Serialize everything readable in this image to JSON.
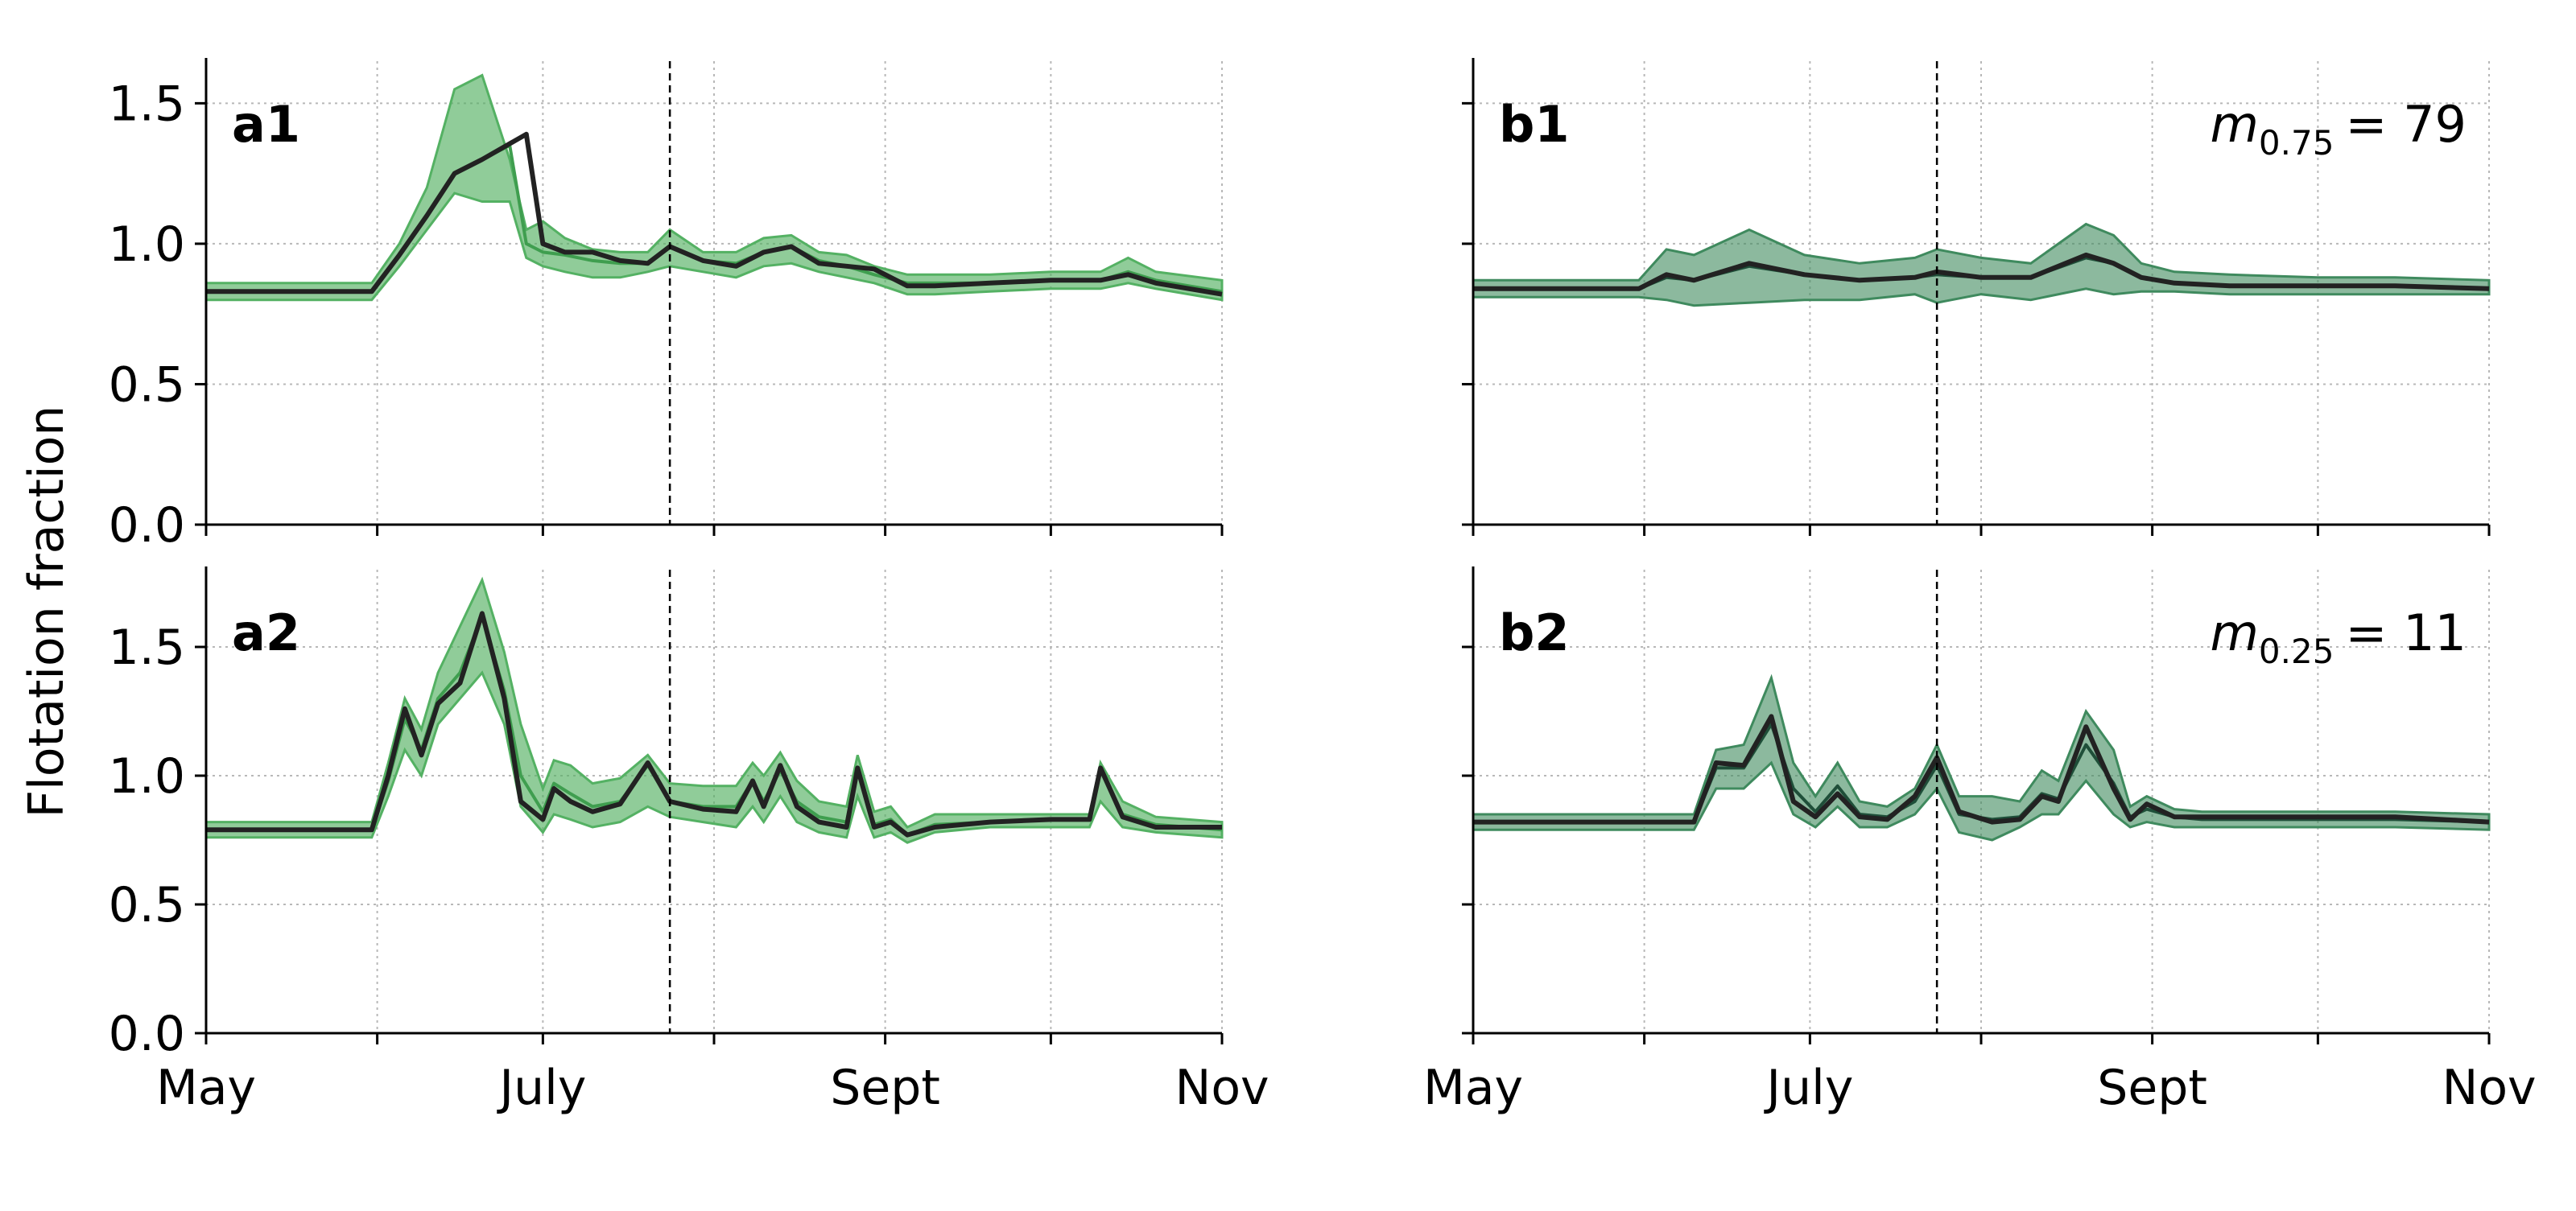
{
  "figure": {
    "ylabel": "Flotation fraction",
    "xtick_labels": [
      "May",
      "July",
      "Sept",
      "Nov"
    ]
  },
  "colors": {
    "green_band": "#54b163",
    "green_line": "#3f9e4f",
    "dark_band": "#3f8a5e",
    "dark_line": "#1f4f39",
    "black_line": "#222222",
    "grid": "#b8b8b8"
  },
  "chart_data": [
    {
      "type": "line",
      "panel": "a1",
      "x_type": "month-day",
      "xlim": [
        "05-01",
        "11-01"
      ],
      "ylim": [
        0,
        1.65
      ],
      "yticks": [
        0.0,
        0.5,
        1.0,
        1.5
      ],
      "ytick_labels": [
        "0.0",
        "0.5",
        "1.0",
        "1.5"
      ],
      "xticks": [
        "05-01",
        "06-01",
        "07-01",
        "08-01",
        "09-01",
        "10-01",
        "11-01"
      ],
      "xtick_labels": [
        "",
        "",
        "",
        "",
        "",
        "",
        ""
      ],
      "vline": "07-24",
      "band_color": "green",
      "grid": true,
      "annotation": null,
      "series": [
        {
          "role": "band",
          "x": [
            "05-01",
            "05-31",
            "06-05",
            "06-10",
            "06-15",
            "06-20",
            "06-25",
            "06-28",
            "07-01",
            "07-05",
            "07-10",
            "07-15",
            "07-20",
            "07-24",
            "07-30",
            "08-05",
            "08-10",
            "08-15",
            "08-20",
            "08-25",
            "08-30",
            "09-05",
            "09-10",
            "09-20",
            "10-01",
            "10-10",
            "10-15",
            "10-20",
            "11-01"
          ],
          "upper": [
            0.86,
            0.86,
            1.0,
            1.2,
            1.55,
            1.6,
            1.3,
            1.05,
            1.08,
            1.02,
            0.98,
            0.97,
            0.97,
            1.05,
            0.97,
            0.97,
            1.02,
            1.03,
            0.97,
            0.96,
            0.92,
            0.89,
            0.89,
            0.89,
            0.9,
            0.9,
            0.95,
            0.9,
            0.87
          ],
          "lower": [
            0.8,
            0.8,
            0.92,
            1.05,
            1.18,
            1.15,
            1.15,
            0.95,
            0.92,
            0.9,
            0.88,
            0.88,
            0.9,
            0.92,
            0.9,
            0.88,
            0.92,
            0.93,
            0.9,
            0.88,
            0.86,
            0.82,
            0.82,
            0.83,
            0.84,
            0.84,
            0.86,
            0.84,
            0.8
          ]
        },
        {
          "role": "mean",
          "x": [
            "05-01",
            "05-31",
            "06-05",
            "06-10",
            "06-15",
            "06-20",
            "06-25",
            "06-28",
            "07-01",
            "07-05",
            "07-10",
            "07-15",
            "07-20",
            "07-24",
            "07-30",
            "08-05",
            "08-10",
            "08-15",
            "08-20",
            "08-25",
            "08-30",
            "09-05",
            "09-10",
            "09-20",
            "10-01",
            "10-10",
            "10-15",
            "10-20",
            "11-01"
          ],
          "y": [
            0.83,
            0.83,
            0.96,
            1.1,
            1.25,
            1.3,
            1.35,
            1.0,
            0.97,
            0.96,
            0.94,
            0.93,
            0.93,
            0.99,
            0.94,
            0.93,
            0.97,
            0.99,
            0.94,
            0.92,
            0.89,
            0.86,
            0.86,
            0.86,
            0.87,
            0.87,
            0.9,
            0.87,
            0.83
          ]
        },
        {
          "role": "reference",
          "x": [
            "05-01",
            "05-31",
            "06-05",
            "06-10",
            "06-15",
            "06-20",
            "06-28",
            "07-01",
            "07-05",
            "07-10",
            "07-15",
            "07-20",
            "07-24",
            "07-30",
            "08-05",
            "08-10",
            "08-15",
            "08-20",
            "08-25",
            "08-30",
            "09-05",
            "09-10",
            "09-20",
            "10-01",
            "10-10",
            "10-15",
            "10-20",
            "11-01"
          ],
          "y": [
            0.83,
            0.83,
            0.96,
            1.1,
            1.25,
            1.3,
            1.39,
            1.0,
            0.97,
            0.97,
            0.94,
            0.93,
            0.99,
            0.94,
            0.92,
            0.97,
            0.99,
            0.93,
            0.92,
            0.91,
            0.85,
            0.85,
            0.86,
            0.87,
            0.87,
            0.89,
            0.86,
            0.82
          ]
        }
      ]
    },
    {
      "type": "line",
      "panel": "b1",
      "x_type": "month-day",
      "xlim": [
        "05-01",
        "11-01"
      ],
      "ylim": [
        0,
        1.65
      ],
      "yticks": [
        0.0,
        0.5,
        1.0,
        1.5
      ],
      "ytick_labels": [
        "",
        "",
        "",
        ""
      ],
      "xticks": [
        "05-01",
        "06-01",
        "07-01",
        "08-01",
        "09-01",
        "10-01",
        "11-01"
      ],
      "xtick_labels": [
        "",
        "",
        "",
        "",
        "",
        "",
        ""
      ],
      "vline": "07-24",
      "band_color": "dark",
      "grid": true,
      "annotation": {
        "symbol": "m",
        "subscript": "0.75",
        "value": "= 79"
      },
      "series": [
        {
          "role": "band",
          "x": [
            "05-01",
            "05-31",
            "06-05",
            "06-10",
            "06-20",
            "06-30",
            "07-10",
            "07-20",
            "07-24",
            "08-01",
            "08-10",
            "08-20",
            "08-25",
            "08-30",
            "09-05",
            "09-15",
            "10-01",
            "10-15",
            "11-01"
          ],
          "upper": [
            0.87,
            0.87,
            0.98,
            0.96,
            1.05,
            0.96,
            0.93,
            0.95,
            0.98,
            0.95,
            0.93,
            1.07,
            1.03,
            0.93,
            0.9,
            0.89,
            0.88,
            0.88,
            0.87
          ],
          "lower": [
            0.81,
            0.81,
            0.8,
            0.78,
            0.79,
            0.8,
            0.8,
            0.82,
            0.79,
            0.82,
            0.8,
            0.84,
            0.82,
            0.83,
            0.83,
            0.82,
            0.82,
            0.82,
            0.82
          ]
        },
        {
          "role": "mean",
          "x": [
            "05-01",
            "05-31",
            "06-05",
            "06-10",
            "06-20",
            "06-30",
            "07-10",
            "07-20",
            "07-24",
            "08-01",
            "08-10",
            "08-20",
            "08-25",
            "08-30",
            "09-05",
            "09-15",
            "10-01",
            "10-15",
            "11-01"
          ],
          "y": [
            0.84,
            0.84,
            0.88,
            0.87,
            0.92,
            0.89,
            0.87,
            0.88,
            0.89,
            0.88,
            0.88,
            0.95,
            0.93,
            0.88,
            0.86,
            0.85,
            0.85,
            0.85,
            0.84
          ]
        },
        {
          "role": "reference",
          "x": [
            "05-01",
            "05-31",
            "06-05",
            "06-10",
            "06-20",
            "06-30",
            "07-10",
            "07-20",
            "07-24",
            "08-01",
            "08-10",
            "08-20",
            "08-25",
            "08-30",
            "09-05",
            "09-15",
            "10-01",
            "10-15",
            "11-01"
          ],
          "y": [
            0.84,
            0.84,
            0.89,
            0.87,
            0.93,
            0.89,
            0.87,
            0.88,
            0.9,
            0.88,
            0.88,
            0.96,
            0.93,
            0.88,
            0.86,
            0.85,
            0.85,
            0.85,
            0.84
          ]
        }
      ]
    },
    {
      "type": "line",
      "panel": "a2",
      "x_type": "month-day",
      "xlim": [
        "05-01",
        "11-01"
      ],
      "ylim": [
        0,
        1.8
      ],
      "yticks": [
        0.0,
        0.5,
        1.0,
        1.5
      ],
      "ytick_labels": [
        "0.0",
        "0.5",
        "1.0",
        "1.5"
      ],
      "xticks": [
        "05-01",
        "06-01",
        "07-01",
        "08-01",
        "09-01",
        "10-01",
        "11-01"
      ],
      "xtick_labels": [
        "May",
        "",
        "July",
        "",
        "Sept",
        "",
        "Nov"
      ],
      "vline": "07-24",
      "band_color": "green",
      "grid": true,
      "annotation": null,
      "series": [
        {
          "role": "band",
          "x": [
            "05-01",
            "05-31",
            "06-03",
            "06-06",
            "06-09",
            "06-12",
            "06-16",
            "06-20",
            "06-24",
            "06-27",
            "07-01",
            "07-03",
            "07-06",
            "07-10",
            "07-15",
            "07-20",
            "07-24",
            "07-30",
            "08-05",
            "08-08",
            "08-10",
            "08-13",
            "08-16",
            "08-20",
            "08-25",
            "08-27",
            "08-30",
            "09-02",
            "09-05",
            "09-10",
            "09-20",
            "10-01",
            "10-08",
            "10-10",
            "10-14",
            "10-20",
            "11-01"
          ],
          "upper": [
            0.82,
            0.82,
            1.05,
            1.3,
            1.18,
            1.4,
            1.58,
            1.76,
            1.48,
            1.2,
            0.95,
            1.06,
            1.04,
            0.97,
            0.99,
            1.08,
            0.97,
            0.96,
            0.96,
            1.05,
            1.0,
            1.09,
            0.98,
            0.9,
            0.88,
            1.08,
            0.86,
            0.88,
            0.8,
            0.85,
            0.85,
            0.85,
            0.85,
            1.05,
            0.9,
            0.84,
            0.82
          ],
          "lower": [
            0.76,
            0.76,
            0.92,
            1.1,
            1.0,
            1.2,
            1.3,
            1.4,
            1.2,
            0.88,
            0.78,
            0.85,
            0.83,
            0.8,
            0.82,
            0.88,
            0.84,
            0.82,
            0.8,
            0.88,
            0.82,
            0.92,
            0.82,
            0.78,
            0.76,
            0.92,
            0.76,
            0.78,
            0.74,
            0.78,
            0.8,
            0.8,
            0.8,
            0.9,
            0.8,
            0.78,
            0.76
          ]
        },
        {
          "role": "mean",
          "x": [
            "05-01",
            "05-31",
            "06-03",
            "06-06",
            "06-09",
            "06-12",
            "06-16",
            "06-20",
            "06-24",
            "06-27",
            "07-01",
            "07-03",
            "07-06",
            "07-10",
            "07-15",
            "07-20",
            "07-24",
            "07-30",
            "08-05",
            "08-08",
            "08-10",
            "08-13",
            "08-16",
            "08-20",
            "08-25",
            "08-27",
            "08-30",
            "09-02",
            "09-05",
            "09-10",
            "09-20",
            "10-01",
            "10-08",
            "10-10",
            "10-14",
            "10-20",
            "11-01"
          ],
          "y": [
            0.79,
            0.79,
            0.98,
            1.22,
            1.1,
            1.3,
            1.4,
            1.62,
            1.33,
            1.0,
            0.86,
            0.97,
            0.93,
            0.88,
            0.9,
            1.04,
            0.9,
            0.88,
            0.88,
            0.98,
            0.9,
            1.02,
            0.9,
            0.84,
            0.82,
            1.02,
            0.81,
            0.83,
            0.77,
            0.81,
            0.82,
            0.83,
            0.83,
            1.02,
            0.85,
            0.81,
            0.79
          ]
        },
        {
          "role": "reference",
          "x": [
            "05-01",
            "05-31",
            "06-03",
            "06-06",
            "06-09",
            "06-12",
            "06-16",
            "06-20",
            "06-24",
            "06-27",
            "07-01",
            "07-03",
            "07-06",
            "07-10",
            "07-15",
            "07-20",
            "07-24",
            "07-30",
            "08-05",
            "08-08",
            "08-10",
            "08-13",
            "08-16",
            "08-20",
            "08-25",
            "08-27",
            "08-30",
            "09-02",
            "09-05",
            "09-10",
            "09-20",
            "10-01",
            "10-08",
            "10-10",
            "10-14",
            "10-20",
            "11-01"
          ],
          "y": [
            0.79,
            0.79,
            1.0,
            1.26,
            1.08,
            1.28,
            1.36,
            1.63,
            1.3,
            0.9,
            0.83,
            0.95,
            0.9,
            0.86,
            0.89,
            1.05,
            0.9,
            0.87,
            0.86,
            0.98,
            0.88,
            1.04,
            0.88,
            0.82,
            0.8,
            1.03,
            0.8,
            0.82,
            0.77,
            0.8,
            0.82,
            0.83,
            0.83,
            1.03,
            0.84,
            0.8,
            0.8
          ]
        }
      ]
    },
    {
      "type": "line",
      "panel": "b2",
      "x_type": "month-day",
      "xlim": [
        "05-01",
        "11-01"
      ],
      "ylim": [
        0,
        1.8
      ],
      "yticks": [
        0.0,
        0.5,
        1.0,
        1.5
      ],
      "ytick_labels": [
        "",
        "",
        "",
        ""
      ],
      "xticks": [
        "05-01",
        "06-01",
        "07-01",
        "08-01",
        "09-01",
        "10-01",
        "11-01"
      ],
      "xtick_labels": [
        "May",
        "",
        "July",
        "",
        "Sept",
        "",
        "Nov"
      ],
      "vline": "07-24",
      "band_color": "dark",
      "grid": true,
      "annotation": {
        "symbol": "m",
        "subscript": "0.25",
        "value": "= 11"
      },
      "series": [
        {
          "role": "band",
          "x": [
            "05-01",
            "06-10",
            "06-14",
            "06-19",
            "06-24",
            "06-28",
            "07-02",
            "07-06",
            "07-10",
            "07-15",
            "07-20",
            "07-24",
            "07-28",
            "08-03",
            "08-08",
            "08-12",
            "08-15",
            "08-20",
            "08-25",
            "08-28",
            "08-31",
            "09-05",
            "09-10",
            "09-20",
            "10-01",
            "10-15",
            "11-01"
          ],
          "upper": [
            0.85,
            0.85,
            1.1,
            1.12,
            1.38,
            1.05,
            0.92,
            1.05,
            0.9,
            0.88,
            0.95,
            1.12,
            0.92,
            0.92,
            0.9,
            1.02,
            0.98,
            1.25,
            1.1,
            0.88,
            0.92,
            0.87,
            0.86,
            0.86,
            0.86,
            0.86,
            0.85
          ],
          "lower": [
            0.79,
            0.79,
            0.95,
            0.95,
            1.05,
            0.85,
            0.8,
            0.88,
            0.8,
            0.8,
            0.85,
            0.95,
            0.78,
            0.75,
            0.8,
            0.85,
            0.85,
            0.98,
            0.85,
            0.8,
            0.82,
            0.8,
            0.8,
            0.8,
            0.8,
            0.8,
            0.79
          ]
        },
        {
          "role": "mean",
          "x": [
            "05-01",
            "06-10",
            "06-14",
            "06-19",
            "06-24",
            "06-28",
            "07-02",
            "07-06",
            "07-10",
            "07-15",
            "07-20",
            "07-24",
            "07-28",
            "08-03",
            "08-08",
            "08-12",
            "08-15",
            "08-20",
            "08-25",
            "08-28",
            "08-31",
            "09-05",
            "09-10",
            "09-20",
            "10-01",
            "10-15",
            "11-01"
          ],
          "y": [
            0.82,
            0.82,
            1.03,
            1.03,
            1.2,
            0.95,
            0.86,
            0.96,
            0.85,
            0.84,
            0.9,
            1.04,
            0.85,
            0.83,
            0.84,
            0.93,
            0.91,
            1.12,
            0.97,
            0.84,
            0.87,
            0.84,
            0.83,
            0.83,
            0.83,
            0.83,
            0.82
          ]
        },
        {
          "role": "reference",
          "x": [
            "05-01",
            "06-10",
            "06-14",
            "06-19",
            "06-24",
            "06-28",
            "07-02",
            "07-06",
            "07-10",
            "07-15",
            "07-20",
            "07-24",
            "07-28",
            "08-03",
            "08-08",
            "08-12",
            "08-15",
            "08-20",
            "08-25",
            "08-28",
            "08-31",
            "09-05",
            "09-10",
            "09-20",
            "10-01",
            "10-15",
            "11-01"
          ],
          "y": [
            0.82,
            0.82,
            1.05,
            1.04,
            1.23,
            0.9,
            0.84,
            0.93,
            0.84,
            0.83,
            0.92,
            1.07,
            0.86,
            0.82,
            0.83,
            0.92,
            0.9,
            1.19,
            0.95,
            0.83,
            0.89,
            0.84,
            0.84,
            0.84,
            0.84,
            0.84,
            0.82
          ]
        }
      ]
    }
  ]
}
